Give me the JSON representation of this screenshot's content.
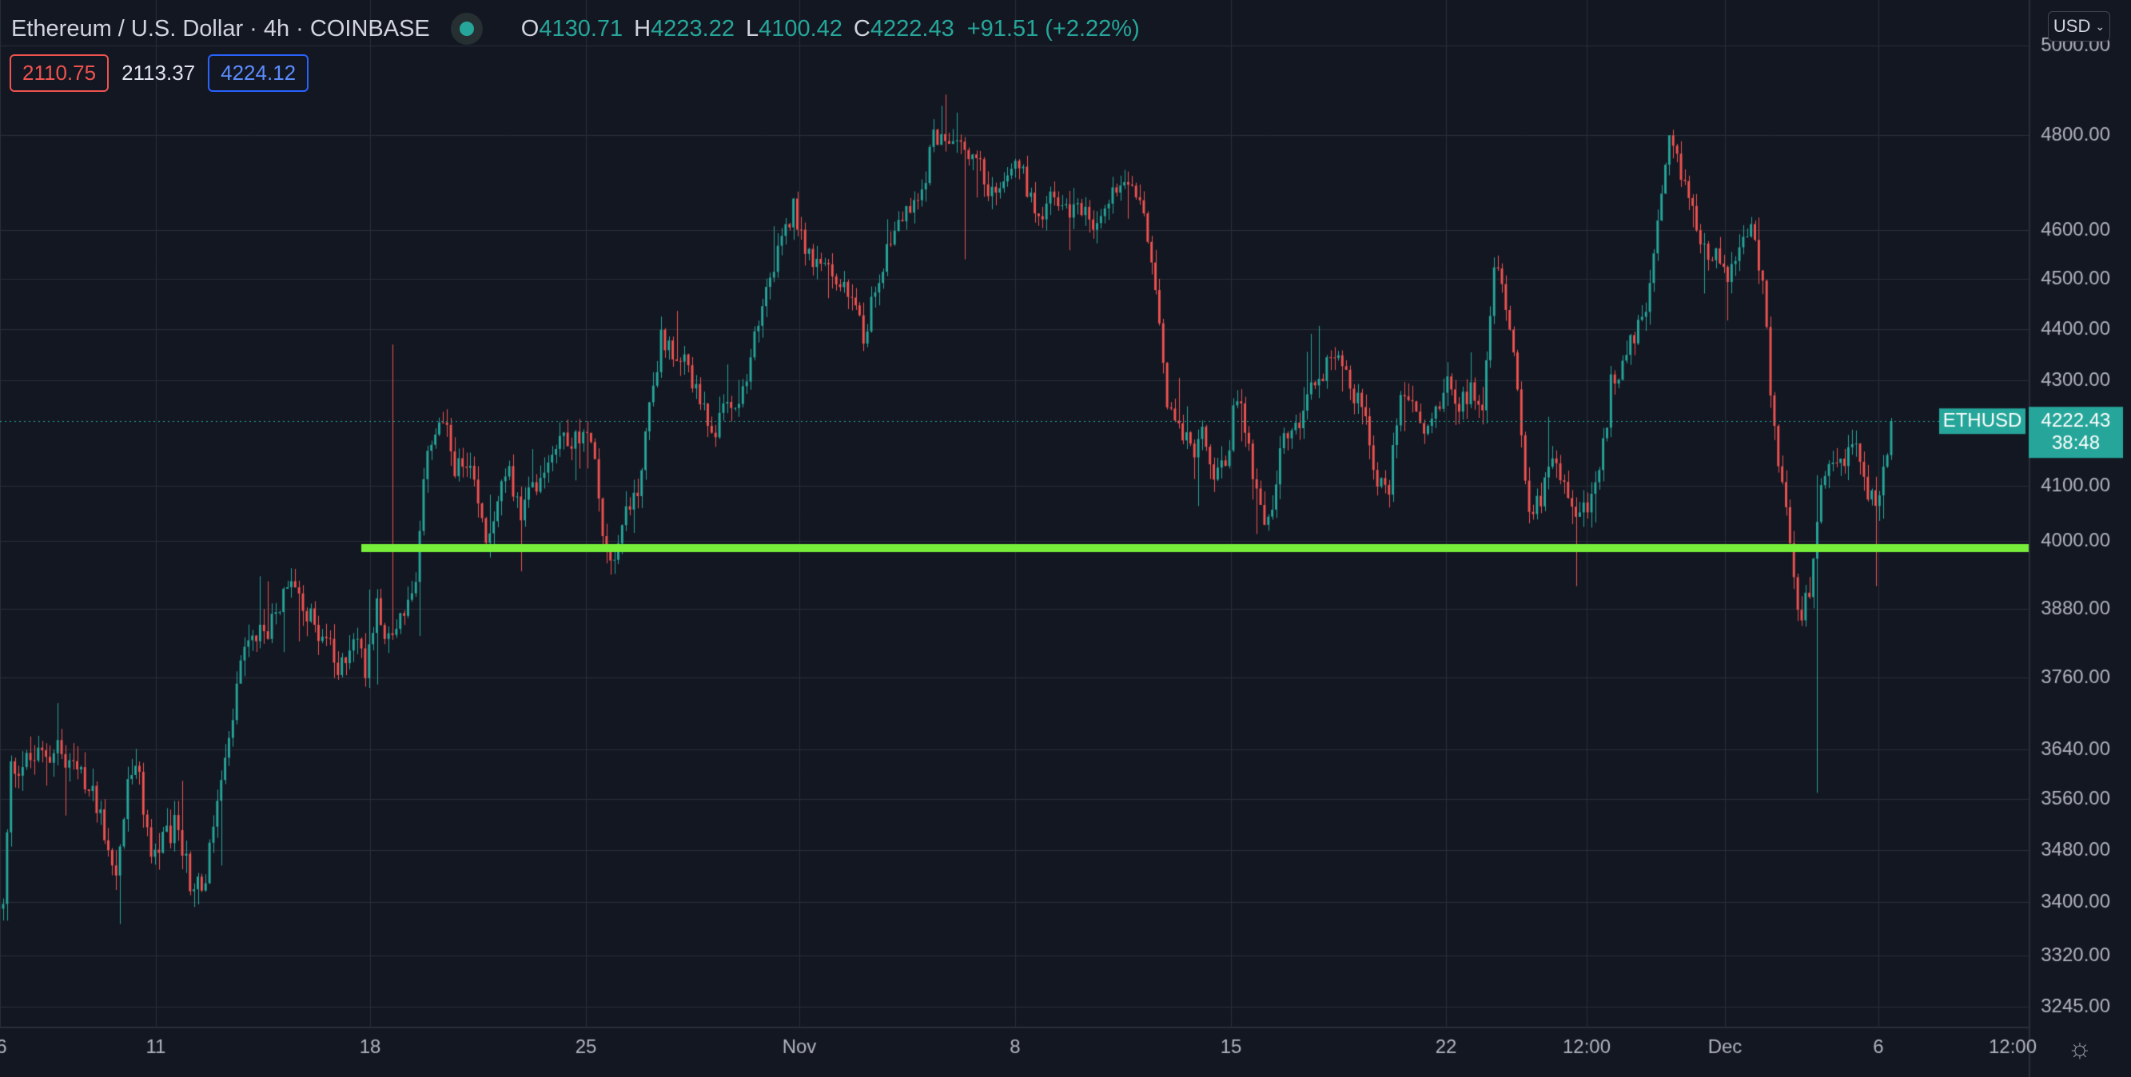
{
  "header": {
    "title": "Ethereum / U.S. Dollar · 4h · COINBASE",
    "open_label": "O",
    "open": "4130.71",
    "high_label": "H",
    "high": "4223.22",
    "low_label": "L",
    "low": "4100.42",
    "close_label": "C",
    "close": "4222.43",
    "change": "+91.51 (+2.22%)"
  },
  "badges": {
    "left": "2110.75",
    "middle": "2113.37",
    "right": "4224.12"
  },
  "currency_button": "USD",
  "symbol_label": "ETHUSD",
  "current_price": "4222.43",
  "countdown": "38:48",
  "colors": {
    "background": "#131722",
    "up": "#26a69a",
    "down": "#ef5350",
    "support_line": "#76ee3a",
    "grid": "#2a2e39"
  },
  "chart_data": {
    "type": "candlestick",
    "title": "Ethereum / U.S. Dollar · 4h · COINBASE",
    "x_tick_labels": [
      "6",
      "11",
      "18",
      "25",
      "Nov",
      "8",
      "15",
      "22",
      "12:00",
      "Dec",
      "6",
      "12:00"
    ],
    "y_tick_labels": [
      "5000.00",
      "4800.00",
      "4600.00",
      "4500.00",
      "4400.00",
      "4300.00",
      "4100.00",
      "4000.00",
      "3880.00",
      "3760.00",
      "3640.00",
      "3560.00",
      "3480.00",
      "3400.00",
      "3320.00",
      "3245.00"
    ],
    "ylim": [
      3210,
      5010
    ],
    "support_level": 4000,
    "current_price": 4222.43,
    "path_start": 3390,
    "path_anchors": [
      [
        0,
        3390
      ],
      [
        2,
        3610
      ],
      [
        14,
        3640
      ],
      [
        24,
        3560
      ],
      [
        29,
        3440
      ],
      [
        32,
        3580
      ],
      [
        34,
        3620
      ],
      [
        38,
        3470
      ],
      [
        45,
        3520
      ],
      [
        48,
        3430
      ],
      [
        52,
        3430
      ],
      [
        55,
        3560
      ],
      [
        58,
        3640
      ],
      [
        61,
        3790
      ],
      [
        64,
        3820
      ],
      [
        68,
        3840
      ],
      [
        72,
        3900
      ],
      [
        75,
        3930
      ],
      [
        79,
        3860
      ],
      [
        83,
        3830
      ],
      [
        86,
        3760
      ],
      [
        90,
        3840
      ],
      [
        93,
        3780
      ],
      [
        96,
        3900
      ],
      [
        99,
        3820
      ],
      [
        102,
        3870
      ],
      [
        106,
        3910
      ],
      [
        109,
        4180
      ],
      [
        113,
        4220
      ],
      [
        116,
        4140
      ],
      [
        120,
        4120
      ],
      [
        124,
        4000
      ],
      [
        127,
        4080
      ],
      [
        130,
        4120
      ],
      [
        133,
        4050
      ],
      [
        137,
        4110
      ],
      [
        141,
        4170
      ],
      [
        144,
        4200
      ],
      [
        148,
        4180
      ],
      [
        151,
        4200
      ],
      [
        154,
        4020
      ],
      [
        157,
        3970
      ],
      [
        160,
        4060
      ],
      [
        163,
        4090
      ],
      [
        166,
        4250
      ],
      [
        169,
        4380
      ],
      [
        172,
        4360
      ],
      [
        175,
        4330
      ],
      [
        178,
        4290
      ],
      [
        182,
        4180
      ],
      [
        185,
        4270
      ],
      [
        188,
        4240
      ],
      [
        191,
        4290
      ],
      [
        194,
        4420
      ],
      [
        197,
        4520
      ],
      [
        200,
        4570
      ],
      [
        203,
        4650
      ],
      [
        206,
        4570
      ],
      [
        209,
        4520
      ],
      [
        212,
        4520
      ],
      [
        215,
        4480
      ],
      [
        218,
        4460
      ],
      [
        221,
        4380
      ],
      [
        224,
        4490
      ],
      [
        227,
        4560
      ],
      [
        230,
        4620
      ],
      [
        233,
        4640
      ],
      [
        236,
        4680
      ],
      [
        239,
        4800
      ],
      [
        242,
        4800
      ],
      [
        245,
        4810
      ],
      [
        248,
        4750
      ],
      [
        251,
        4730
      ],
      [
        254,
        4670
      ],
      [
        257,
        4720
      ],
      [
        260,
        4760
      ],
      [
        263,
        4690
      ],
      [
        266,
        4630
      ],
      [
        269,
        4670
      ],
      [
        272,
        4640
      ],
      [
        275,
        4640
      ],
      [
        278,
        4660
      ],
      [
        281,
        4600
      ],
      [
        284,
        4660
      ],
      [
        287,
        4710
      ],
      [
        290,
        4700
      ],
      [
        293,
        4640
      ],
      [
        296,
        4500
      ],
      [
        299,
        4260
      ],
      [
        302,
        4230
      ],
      [
        305,
        4160
      ],
      [
        308,
        4190
      ],
      [
        311,
        4120
      ],
      [
        314,
        4140
      ],
      [
        317,
        4280
      ],
      [
        320,
        4170
      ],
      [
        323,
        4050
      ],
      [
        326,
        4050
      ],
      [
        329,
        4200
      ],
      [
        332,
        4200
      ],
      [
        335,
        4290
      ],
      [
        338,
        4300
      ],
      [
        341,
        4360
      ],
      [
        344,
        4340
      ],
      [
        347,
        4270
      ],
      [
        350,
        4230
      ],
      [
        353,
        4100
      ],
      [
        356,
        4100
      ],
      [
        359,
        4290
      ],
      [
        362,
        4260
      ],
      [
        365,
        4200
      ],
      [
        368,
        4240
      ],
      [
        371,
        4310
      ],
      [
        374,
        4260
      ],
      [
        377,
        4280
      ],
      [
        380,
        4230
      ],
      [
        383,
        4530
      ],
      [
        386,
        4460
      ],
      [
        389,
        4300
      ],
      [
        392,
        4040
      ],
      [
        395,
        4080
      ],
      [
        398,
        4140
      ],
      [
        401,
        4100
      ],
      [
        404,
        4050
      ],
      [
        407,
        4070
      ],
      [
        410,
        4110
      ],
      [
        413,
        4290
      ],
      [
        416,
        4340
      ],
      [
        419,
        4380
      ],
      [
        422,
        4440
      ],
      [
        425,
        4600
      ],
      [
        428,
        4780
      ],
      [
        431,
        4720
      ],
      [
        434,
        4650
      ],
      [
        437,
        4560
      ],
      [
        440,
        4550
      ],
      [
        443,
        4500
      ],
      [
        446,
        4560
      ],
      [
        449,
        4610
      ],
      [
        452,
        4480
      ],
      [
        455,
        4200
      ],
      [
        458,
        4060
      ],
      [
        461,
        3860
      ],
      [
        464,
        3900
      ],
      [
        467,
        4080
      ],
      [
        470,
        4140
      ],
      [
        473,
        4150
      ],
      [
        476,
        4180
      ],
      [
        479,
        4080
      ],
      [
        482,
        4080
      ],
      [
        485,
        4210
      ]
    ]
  }
}
